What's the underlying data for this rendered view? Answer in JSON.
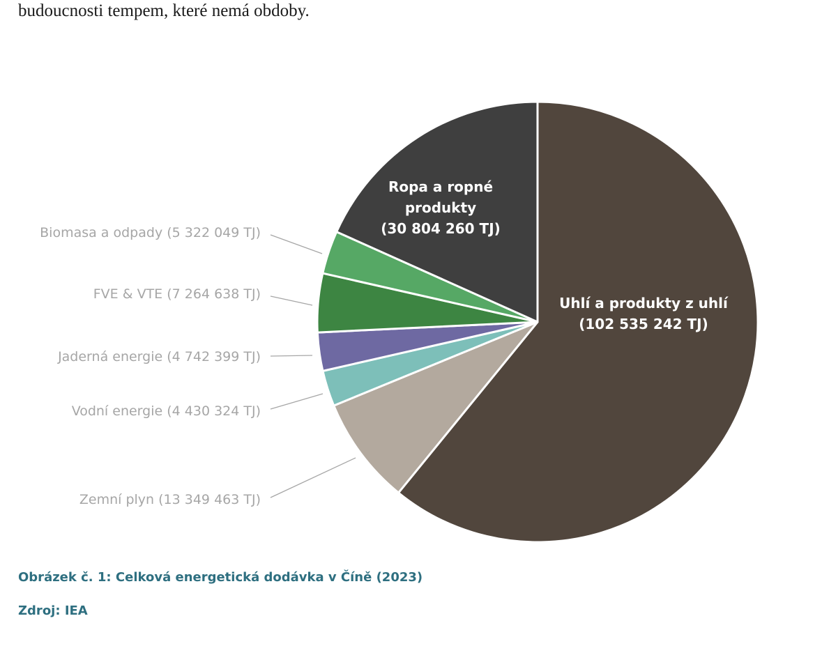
{
  "intro_text": "budoucnosti tempem, které nemá obdoby.",
  "chart_data": {
    "type": "pie",
    "unit": "TJ",
    "start_angle_deg": 0,
    "direction": "clockwise",
    "slices": [
      {
        "name": "Uhlí a produkty z uhlí",
        "value": 102535242,
        "label_lines": [
          "Uhlí a produkty z uhlí",
          "(102 535 242 TJ)"
        ],
        "label_placement": "inside",
        "color": "#51463d"
      },
      {
        "name": "Zemní plyn",
        "value": 13349463,
        "label_lines": [
          "Zemní plyn (13 349 463 TJ)"
        ],
        "label_placement": "outside",
        "color": "#b3a99e"
      },
      {
        "name": "Vodní energie",
        "value": 4430324,
        "label_lines": [
          "Vodní energie (4 430 324 TJ)"
        ],
        "label_placement": "outside",
        "color": "#7dbfb9"
      },
      {
        "name": "Jaderná energie",
        "value": 4742399,
        "label_lines": [
          "Jaderná energie (4 742 399 TJ)"
        ],
        "label_placement": "outside",
        "color": "#6e69a2"
      },
      {
        "name": "FVE & VTE",
        "value": 7264638,
        "label_lines": [
          "FVE & VTE (7 264 638 TJ)"
        ],
        "label_placement": "outside",
        "color": "#3d8542"
      },
      {
        "name": "Biomasa a odpady",
        "value": 5322049,
        "label_lines": [
          "Biomasa a odpady (5 322 049 TJ)"
        ],
        "label_placement": "outside",
        "color": "#56a865"
      },
      {
        "name": "Ropa a ropné produkty",
        "value": 30804260,
        "label_lines": [
          "Ropa a ropné",
          "produkty",
          "(30 804 260 TJ)"
        ],
        "label_placement": "inside",
        "color": "#3f3f3f"
      }
    ]
  },
  "caption": {
    "title": "Obrázek č. 1: Celková energetická dodávka v Číně (2023)",
    "source": "Zdroj: IEA",
    "color": "#2e6f80"
  }
}
